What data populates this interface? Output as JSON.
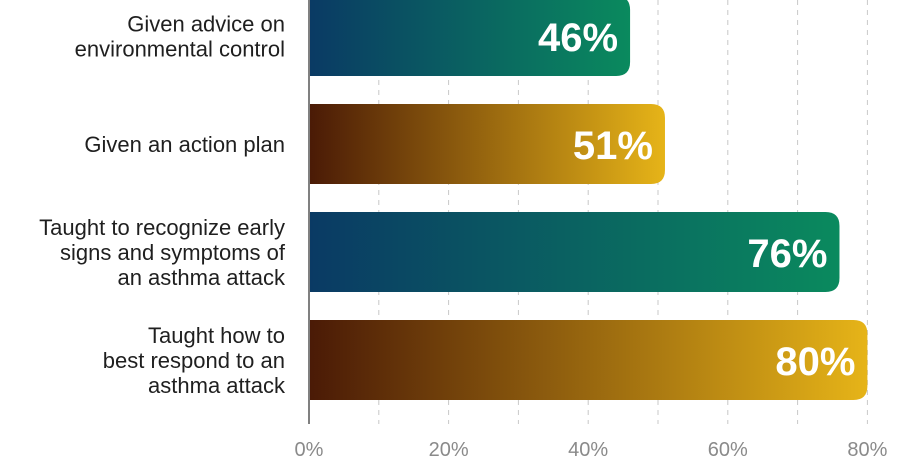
{
  "chart_data": {
    "type": "bar",
    "orientation": "horizontal",
    "categories": [
      [
        "Given advice on",
        "environmental control"
      ],
      [
        "Given an action plan"
      ],
      [
        "Taught to recognize early",
        "signs and symptoms of",
        "an asthma attack"
      ],
      [
        "Taught how to",
        "best respond to an",
        "asthma attack"
      ]
    ],
    "values": [
      46,
      51,
      76,
      80
    ],
    "value_labels": [
      "46%",
      "51%",
      "76%",
      "80%"
    ],
    "bar_styles": [
      "teal",
      "gold",
      "teal",
      "gold"
    ],
    "x_ticks": [
      "0%",
      "20%",
      "40%",
      "60%",
      "80%"
    ],
    "x_tick_values": [
      0,
      20,
      40,
      60,
      80
    ],
    "xlim": [
      0,
      85
    ],
    "grid": "vertical-dashed",
    "colors": {
      "teal_start": "#0a3a64",
      "teal_end": "#0a8a5e",
      "gold_start": "#4a1a06",
      "gold_end": "#e6b418",
      "axis": "#808080",
      "grid": "#c8c8c8"
    }
  }
}
